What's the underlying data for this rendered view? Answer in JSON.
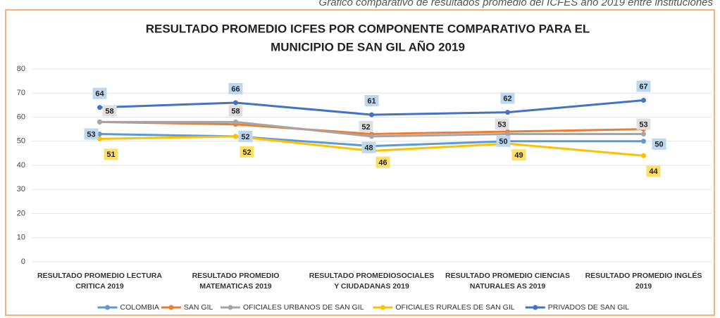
{
  "caption": "Gráfico comparativo de resultados promedio del ICFES año 2019 entre instituciones",
  "chart_data": {
    "type": "line",
    "title": [
      "RESULTADO PROMEDIO ICFES POR COMPONENTE COMPARATIVO PARA EL",
      "MUNICIPIO DE SAN GIL AÑO 2019"
    ],
    "categories": [
      "RESULTADO PROMEDIO LECTURA CRITICA 2019",
      "RESULTADO PROMEDIO MATEMATICAS 2019",
      "RESULTADO PROMEDIOSOCIALES Y CIUDADANAS 2019",
      "RESULTADO PROMEDIO CIENCIAS NATURALES AS 2019",
      "RESULTADO PROMEDIO INGLÉS 2019"
    ],
    "series": [
      {
        "name": "COLOMBIA",
        "color": "#5b9bd5",
        "values": [
          53,
          52,
          48,
          50,
          50
        ],
        "labels": true
      },
      {
        "name": "SAN GIL",
        "color": "#ed7d31",
        "values": [
          58,
          57,
          53,
          54,
          55
        ],
        "labels": false
      },
      {
        "name": "OFICIALES URBANOS DE SAN GIL",
        "color": "#a5a5a5",
        "values": [
          58,
          58,
          52,
          53,
          53
        ],
        "labels": true
      },
      {
        "name": "OFICIALES RURALES DE SAN GIL",
        "color": "#ffc000",
        "values": [
          51,
          52,
          46,
          49,
          44
        ],
        "labels": true
      },
      {
        "name": "PRIVADOS DE SAN GIL",
        "color": "#4472c4",
        "values": [
          64,
          66,
          61,
          62,
          67
        ],
        "labels": true
      }
    ],
    "ylim": [
      0,
      80
    ],
    "yticks": [
      0,
      10,
      20,
      30,
      40,
      50,
      60,
      70,
      80
    ],
    "grid": true
  }
}
